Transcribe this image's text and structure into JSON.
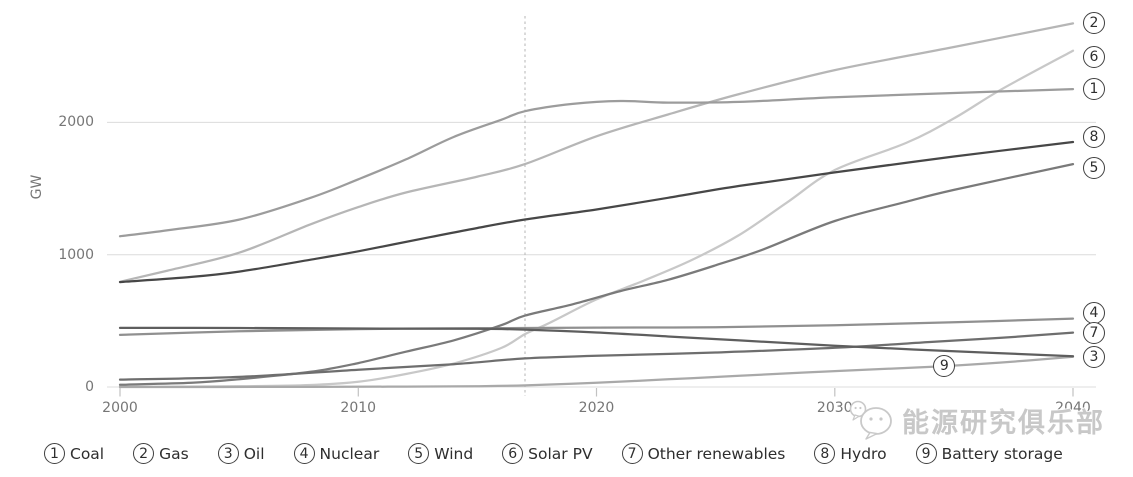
{
  "chart_data": {
    "type": "line",
    "title": "",
    "xlabel": "",
    "ylabel": "GW",
    "x_ticks": [
      2000,
      2010,
      2020,
      2030,
      2040
    ],
    "y_ticks": [
      0,
      1000,
      2000
    ],
    "xlim": [
      2000,
      2040
    ],
    "ylim": [
      0,
      2800
    ],
    "divider_year": 2017,
    "grid": "horizontal-light",
    "gridline_color": "#dcdcdc",
    "divider_color": "#b5b5b5",
    "axis_tick_color": "#c2c2c2",
    "legend_position": "bottom",
    "series": [
      {
        "id": "coal",
        "num": "1",
        "name": "Coal",
        "color": "#9c9c9c",
        "points": [
          [
            2000,
            1140
          ],
          [
            2002,
            1185
          ],
          [
            2005,
            1265
          ],
          [
            2008,
            1430
          ],
          [
            2010,
            1570
          ],
          [
            2012,
            1720
          ],
          [
            2014,
            1890
          ],
          [
            2016,
            2020
          ],
          [
            2017,
            2085
          ],
          [
            2019,
            2140
          ],
          [
            2021,
            2162
          ],
          [
            2023,
            2150
          ],
          [
            2026,
            2155
          ],
          [
            2030,
            2190
          ],
          [
            2035,
            2222
          ],
          [
            2040,
            2252
          ]
        ],
        "marker": {
          "type": "edge",
          "dy": 0
        }
      },
      {
        "id": "gas",
        "num": "2",
        "name": "Gas",
        "color": "#b6b6b6",
        "points": [
          [
            2000,
            795
          ],
          [
            2002,
            880
          ],
          [
            2005,
            1015
          ],
          [
            2008,
            1230
          ],
          [
            2010,
            1360
          ],
          [
            2012,
            1470
          ],
          [
            2015,
            1590
          ],
          [
            2017,
            1685
          ],
          [
            2020,
            1895
          ],
          [
            2023,
            2060
          ],
          [
            2026,
            2215
          ],
          [
            2030,
            2395
          ],
          [
            2035,
            2570
          ],
          [
            2040,
            2748
          ]
        ],
        "marker": {
          "type": "edge",
          "dy": 0
        }
      },
      {
        "id": "oil",
        "num": "3",
        "name": "Oil",
        "color": "#5e5e5e",
        "points": [
          [
            2000,
            447
          ],
          [
            2005,
            446
          ],
          [
            2010,
            442
          ],
          [
            2015,
            440
          ],
          [
            2017,
            434
          ],
          [
            2020,
            412
          ],
          [
            2023,
            382
          ],
          [
            2026,
            352
          ],
          [
            2030,
            312
          ],
          [
            2035,
            270
          ],
          [
            2040,
            233
          ]
        ],
        "marker": {
          "type": "edge",
          "dy": 1
        }
      },
      {
        "id": "nuclear",
        "num": "4",
        "name": "Nuclear",
        "color": "#909090",
        "points": [
          [
            2000,
            394
          ],
          [
            2005,
            421
          ],
          [
            2010,
            438
          ],
          [
            2015,
            444
          ],
          [
            2017,
            446
          ],
          [
            2020,
            449
          ],
          [
            2025,
            452
          ],
          [
            2030,
            466
          ],
          [
            2035,
            489
          ],
          [
            2040,
            517
          ]
        ],
        "marker": {
          "type": "edge",
          "dy": -6
        }
      },
      {
        "id": "wind",
        "num": "5",
        "name": "Wind",
        "color": "#7a7a7a",
        "points": [
          [
            2000,
            17
          ],
          [
            2003,
            32
          ],
          [
            2005,
            59
          ],
          [
            2008,
            115
          ],
          [
            2010,
            181
          ],
          [
            2012,
            267
          ],
          [
            2014,
            352
          ],
          [
            2016,
            467
          ],
          [
            2017,
            540
          ],
          [
            2019,
            625
          ],
          [
            2021,
            725
          ],
          [
            2023,
            810
          ],
          [
            2025,
            920
          ],
          [
            2027,
            1040
          ],
          [
            2030,
            1255
          ],
          [
            2033,
            1400
          ],
          [
            2035,
            1490
          ],
          [
            2040,
            1685
          ]
        ],
        "marker": {
          "type": "edge",
          "dy": 4
        }
      },
      {
        "id": "solar_pv",
        "num": "6",
        "name": "Solar PV",
        "color": "#c8c8c8",
        "points": [
          [
            2000,
            1
          ],
          [
            2005,
            5
          ],
          [
            2008,
            15
          ],
          [
            2010,
            40
          ],
          [
            2012,
            98
          ],
          [
            2014,
            177
          ],
          [
            2016,
            295
          ],
          [
            2017,
            400
          ],
          [
            2018,
            482
          ],
          [
            2020,
            662
          ],
          [
            2022,
            805
          ],
          [
            2024,
            960
          ],
          [
            2026,
            1150
          ],
          [
            2028,
            1395
          ],
          [
            2030,
            1640
          ],
          [
            2033,
            1845
          ],
          [
            2035,
            2030
          ],
          [
            2037,
            2250
          ],
          [
            2040,
            2542
          ]
        ],
        "marker": {
          "type": "edge",
          "dy": 6
        }
      },
      {
        "id": "other_renewables",
        "num": "7",
        "name": "Other renewables",
        "color": "#6e6e6e",
        "points": [
          [
            2000,
            56
          ],
          [
            2005,
            76
          ],
          [
            2010,
            131
          ],
          [
            2014,
            172
          ],
          [
            2017,
            216
          ],
          [
            2020,
            236
          ],
          [
            2025,
            261
          ],
          [
            2030,
            296
          ],
          [
            2034,
            340
          ],
          [
            2037,
            372
          ],
          [
            2040,
            411
          ]
        ],
        "marker": {
          "type": "edge",
          "dy": 0
        }
      },
      {
        "id": "hydro",
        "num": "8",
        "name": "Hydro",
        "color": "#474747",
        "points": [
          [
            2000,
            793
          ],
          [
            2003,
            832
          ],
          [
            2005,
            872
          ],
          [
            2008,
            962
          ],
          [
            2010,
            1026
          ],
          [
            2013,
            1132
          ],
          [
            2015,
            1202
          ],
          [
            2017,
            1266
          ],
          [
            2020,
            1342
          ],
          [
            2023,
            1430
          ],
          [
            2026,
            1520
          ],
          [
            2030,
            1622
          ],
          [
            2035,
            1742
          ],
          [
            2040,
            1852
          ]
        ],
        "marker": {
          "type": "edge",
          "dy": -5
        }
      },
      {
        "id": "battery_storage",
        "num": "9",
        "name": "Battery storage",
        "color": "#a9a9a9",
        "points": [
          [
            2000,
            0
          ],
          [
            2008,
            1
          ],
          [
            2012,
            3
          ],
          [
            2015,
            6
          ],
          [
            2017,
            12
          ],
          [
            2020,
            32
          ],
          [
            2023,
            58
          ],
          [
            2026,
            85
          ],
          [
            2030,
            120
          ],
          [
            2034,
            152
          ],
          [
            2037,
            185
          ],
          [
            2040,
            228
          ]
        ],
        "marker": {
          "type": "inline",
          "at_year": 2034.6
        }
      }
    ],
    "draw_order": [
      "solar_pv",
      "gas",
      "battery_storage",
      "coal",
      "nuclear",
      "gas",
      "wind",
      "other_renewables",
      "oil",
      "hydro"
    ]
  },
  "legend": {
    "items": [
      {
        "num": "1",
        "label": "Coal"
      },
      {
        "num": "2",
        "label": "Gas"
      },
      {
        "num": "3",
        "label": "Oil"
      },
      {
        "num": "4",
        "label": "Nuclear"
      },
      {
        "num": "5",
        "label": "Wind"
      },
      {
        "num": "6",
        "label": "Solar PV"
      },
      {
        "num": "7",
        "label": "Other renewables"
      },
      {
        "num": "8",
        "label": "Hydro"
      },
      {
        "num": "9",
        "label": "Battery storage"
      }
    ]
  },
  "watermark": {
    "text": "能源研究俱乐部",
    "icon": "wechat-icon",
    "color": "#c8c8c8"
  }
}
